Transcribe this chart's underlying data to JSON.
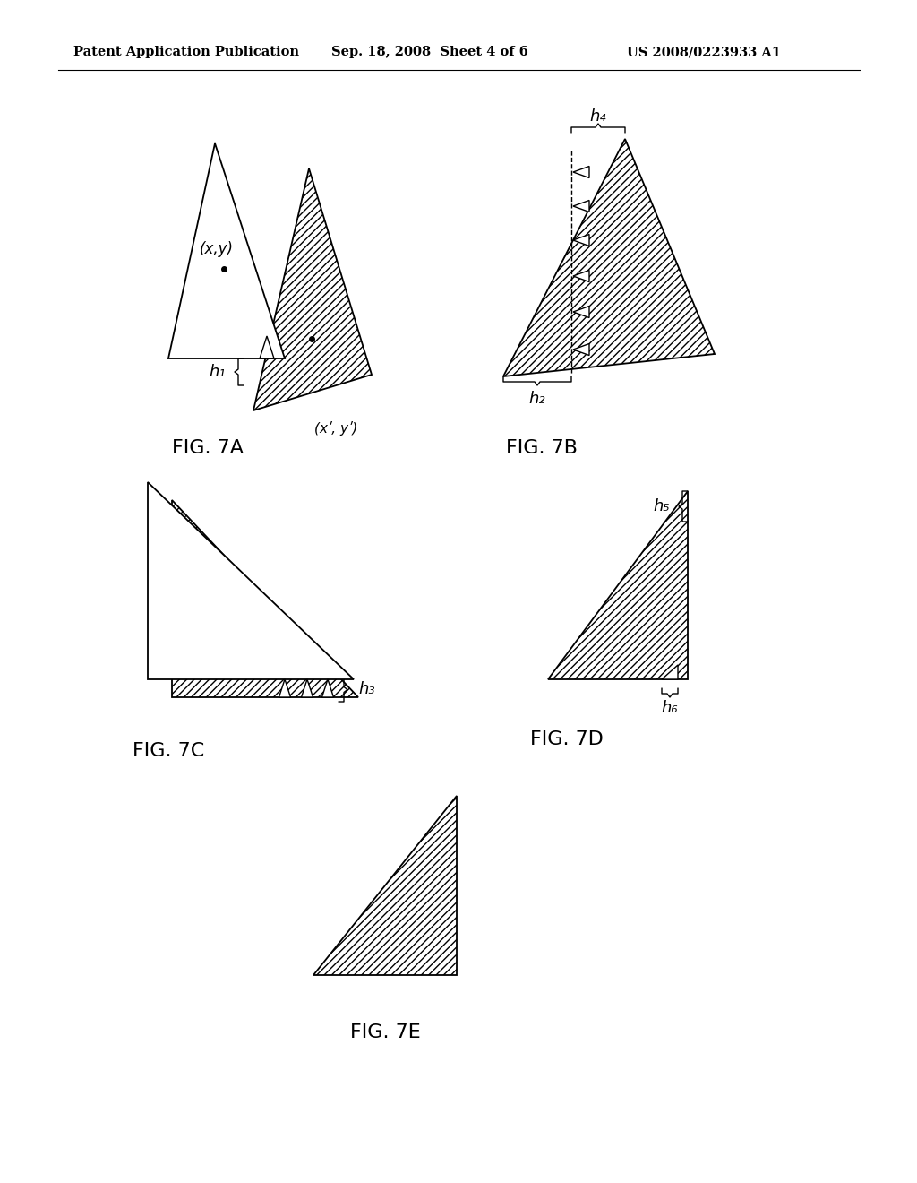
{
  "bg_color": "#ffffff",
  "header_left": "Patent Application Publication",
  "header_mid": "Sep. 18, 2008  Sheet 4 of 6",
  "header_right": "US 2008/0223933 A1",
  "header_fontsize": 10.5,
  "fig_labels": [
    "FIG. 7A",
    "FIG. 7B",
    "FIG. 7C",
    "FIG. 7D",
    "FIG. 7E"
  ],
  "hatch_pattern": "////",
  "line_color": "#000000",
  "bg": "#ffffff"
}
